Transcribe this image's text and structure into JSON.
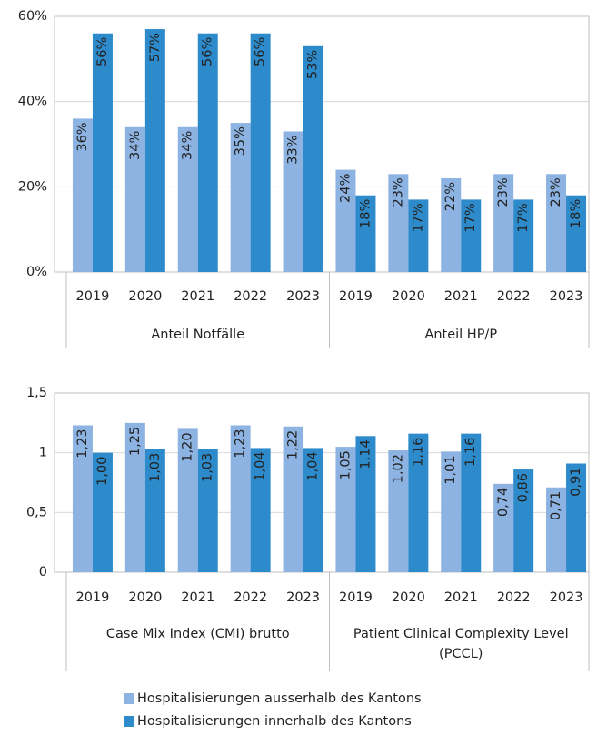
{
  "chart_data": [
    {
      "type": "bar",
      "groups": [
        {
          "name": "Anteil Notfälle",
          "categories": [
            "2019",
            "2020",
            "2021",
            "2022",
            "2023"
          ]
        },
        {
          "name": "Anteil HP/P",
          "categories": [
            "2019",
            "2020",
            "2021",
            "2022",
            "2023"
          ]
        }
      ],
      "series": [
        {
          "name": "Hospitalisierungen ausserhalb des Kantons",
          "color": "#8db3e2",
          "values": [
            36,
            34,
            34,
            35,
            33,
            24,
            23,
            22,
            23,
            23
          ],
          "value_labels": [
            "36%",
            "34%",
            "34%",
            "35%",
            "33%",
            "24%",
            "23%",
            "22%",
            "23%",
            "23%"
          ]
        },
        {
          "name": "Hospitalisierungen innerhalb des Kantons",
          "color": "#2e8bcb",
          "values": [
            56,
            57,
            56,
            56,
            53,
            18,
            17,
            17,
            17,
            18
          ],
          "value_labels": [
            "56%",
            "57%",
            "56%",
            "56%",
            "53%",
            "18%",
            "17%",
            "17%",
            "17%",
            "18%"
          ]
        }
      ],
      "ylim": [
        0,
        60
      ],
      "yticks": [
        {
          "value": 0,
          "label": "0%"
        },
        {
          "value": 20,
          "label": "20%"
        },
        {
          "value": 40,
          "label": "40%"
        },
        {
          "value": 60,
          "label": "60%"
        }
      ],
      "grid": true
    },
    {
      "type": "bar",
      "groups": [
        {
          "name": "Case Mix Index (CMI) brutto",
          "categories": [
            "2019",
            "2020",
            "2021",
            "2022",
            "2023"
          ]
        },
        {
          "name": [
            "Patient Clinical Complexity Level",
            "(PCCL)"
          ],
          "categories": [
            "2019",
            "2020",
            "2021",
            "2022",
            "2023"
          ]
        }
      ],
      "series": [
        {
          "color": "#8db3e2",
          "values": [
            1.23,
            1.25,
            1.2,
            1.23,
            1.22,
            1.05,
            1.02,
            1.01,
            0.74,
            0.71
          ],
          "value_labels": [
            "1,23",
            "1,25",
            "1,20",
            "1,23",
            "1,22",
            "1,05",
            "1,02",
            "1,01",
            "0,74",
            "0,71"
          ]
        },
        {
          "color": "#2e8bcb",
          "values": [
            1.0,
            1.03,
            1.03,
            1.04,
            1.04,
            1.14,
            1.16,
            1.16,
            0.86,
            0.91
          ],
          "value_labels": [
            "1,00",
            "1,03",
            "1,03",
            "1,04",
            "1,04",
            "1,14",
            "1,16",
            "1,16",
            "0,86",
            "0,91"
          ]
        }
      ],
      "ylim": [
        0,
        1.5
      ],
      "yticks": [
        0,
        {
          "value": 0.5,
          "label": "0,5"
        },
        1,
        {
          "value": 1.5,
          "label": "1,5"
        }
      ],
      "grid": true
    }
  ]
}
